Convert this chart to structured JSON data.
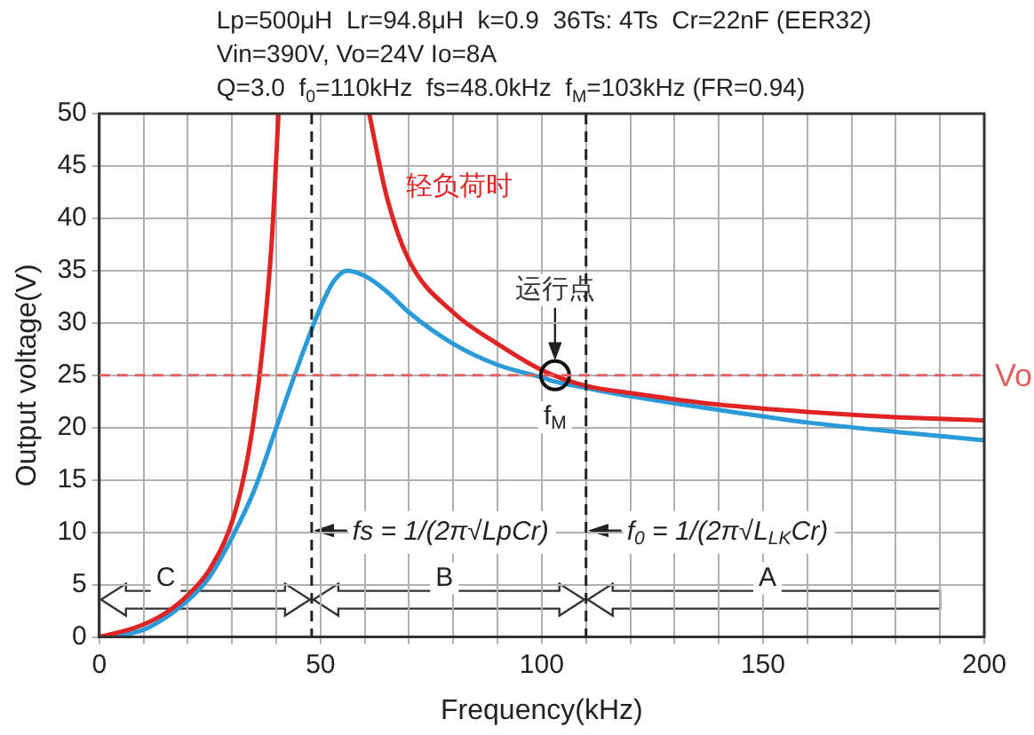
{
  "chart_data": {
    "type": "line",
    "xlabel": "Frequency(kHz)",
    "ylabel": "Output voltage(V)",
    "xlim": [
      0,
      200
    ],
    "ylim": [
      0,
      50
    ],
    "xticks": [
      0,
      {
        "value": 10,
        "label": null
      },
      {
        "value": 20,
        "label": null
      },
      {
        "value": 30,
        "label": null
      },
      {
        "value": 40,
        "label": null
      },
      50,
      {
        "value": 60,
        "label": null
      },
      {
        "value": 70,
        "label": null
      },
      {
        "value": 80,
        "label": null
      },
      {
        "value": 90,
        "label": null
      },
      100,
      {
        "value": 110,
        "label": null
      },
      {
        "value": 120,
        "label": null
      },
      {
        "value": 130,
        "label": null
      },
      {
        "value": 140,
        "label": null
      },
      150,
      {
        "value": 160,
        "label": null
      },
      {
        "value": 170,
        "label": null
      },
      {
        "value": 180,
        "label": null
      },
      {
        "value": 190,
        "label": null
      },
      200
    ],
    "yticks": [
      0,
      5,
      10,
      15,
      20,
      25,
      30,
      35,
      40,
      45,
      50
    ],
    "grid": true,
    "line_style": "solid",
    "series": [
      {
        "name": "轻负荷时",
        "color": "#e02424",
        "marker": "none",
        "x": [
          0,
          5,
          10,
          15,
          20,
          25,
          30,
          33,
          35,
          37,
          39,
          40.5,
          50,
          61,
          65,
          70,
          80,
          90,
          100,
          110,
          120,
          140,
          160,
          180,
          200
        ],
        "values": [
          0,
          0.5,
          1.2,
          2.3,
          4,
          6.5,
          11,
          16,
          21,
          28,
          38,
          50,
          null,
          50,
          42,
          36,
          31,
          28,
          25.5,
          24,
          23.3,
          22.2,
          21.5,
          21,
          20.7
        ]
      },
      {
        "color": "#2a9ad8",
        "marker": "none",
        "x": [
          0,
          10,
          20,
          25,
          30,
          35,
          40,
          45,
          50,
          53,
          56,
          60,
          65,
          70,
          80,
          90,
          100,
          103,
          110,
          120,
          140,
          160,
          180,
          200
        ],
        "values": [
          0,
          0.7,
          3.5,
          5.8,
          9.5,
          14,
          20,
          26,
          31.5,
          34,
          35,
          34.5,
          33,
          31,
          28,
          26,
          24.8,
          24.4,
          23.8,
          23,
          21.7,
          20.5,
          19.6,
          18.8
        ]
      },
      {
        "type": "scatter",
        "name": "运行点",
        "color": "#111111",
        "marker": "circle",
        "x": [
          103
        ],
        "values": [
          25
        ]
      }
    ],
    "ref_lines": [
      {
        "axis": "y",
        "value": 25,
        "label": "Vo",
        "color": "#e06060",
        "line_style": "dashed"
      },
      {
        "axis": "x",
        "value": 48,
        "color": "#222222",
        "line_style": "dashed"
      },
      {
        "axis": "x",
        "value": 110,
        "color": "#222222",
        "line_style": "dashed"
      }
    ],
    "annotations": [
      "Lp=500μH  Lr=94.8μH  k=0.9  36Ts: 4Ts  Cr=22nF (EER32)",
      "Vin=390V, Vo=24V Io=8A",
      "Q=3.0  f$_{0}$=110kHz  fs=48.0kHz  f$_{M}$=103kHz (FR=0.94)",
      {
        "text": "f$_{M}$",
        "x": 103,
        "y": 21
      },
      {
        "text": "fs = 1/(2π√LpCr)",
        "x": 48,
        "y": 10
      },
      {
        "text": "f$_{0}$ = 1/(2π√L$_{LK}$Cr)",
        "x": 110,
        "y": 10
      },
      {
        "text": "C",
        "x": 15,
        "y": 5.6
      },
      {
        "text": "B",
        "x": 78,
        "y": 5.6
      },
      {
        "text": "A",
        "x": 151,
        "y": 5.6
      }
    ]
  }
}
